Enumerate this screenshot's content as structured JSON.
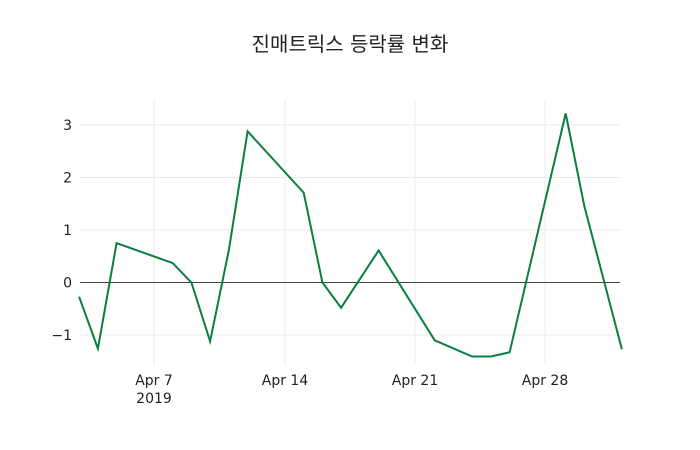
{
  "chart_data": {
    "type": "line",
    "title": "진매트릭스 등락률 변화",
    "xlabel": "",
    "ylabel": "",
    "x": [
      "2019-04-03",
      "2019-04-04",
      "2019-04-05",
      "2019-04-08",
      "2019-04-09",
      "2019-04-10",
      "2019-04-11",
      "2019-04-12",
      "2019-04-15",
      "2019-04-16",
      "2019-04-17",
      "2019-04-19",
      "2019-04-22",
      "2019-04-24",
      "2019-04-25",
      "2019-04-26",
      "2019-04-29",
      "2019-04-30",
      "2019-05-02"
    ],
    "series": [
      {
        "name": "등락률",
        "color": "#0a7f3f",
        "values": [
          -0.27,
          -1.26,
          0.75,
          0.37,
          0.0,
          -1.12,
          0.62,
          2.88,
          1.71,
          0.0,
          -0.48,
          0.61,
          -1.1,
          -1.41,
          -1.41,
          -1.33,
          3.22,
          1.45,
          -1.27
        ]
      }
    ],
    "x_ticks": [
      "Apr 7",
      "Apr 14",
      "Apr 21",
      "Apr 28"
    ],
    "x_tick_year": "2019",
    "y_ticks": [
      "3",
      "2",
      "1",
      "0",
      "−1"
    ],
    "ylim": [
      -1.6,
      3.5
    ],
    "grid": true,
    "zero_line": true
  }
}
